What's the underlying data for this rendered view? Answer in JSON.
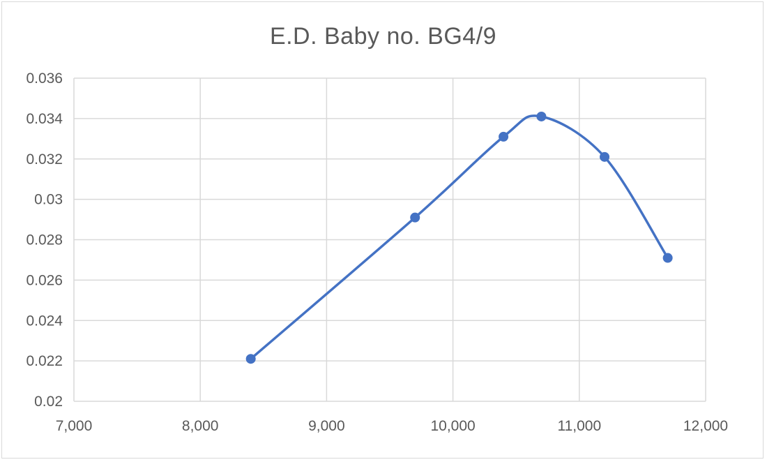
{
  "chart_data": {
    "type": "scatter",
    "title": "E.D. Baby no. BG4/9",
    "xlabel": "",
    "ylabel": "",
    "x_ticks": [
      "7,000",
      "8,000",
      "9,000",
      "10,000",
      "11,000",
      "12,000"
    ],
    "y_ticks": [
      "0.036",
      "0.034",
      "0.032",
      "0.03",
      "0.028",
      "0.026",
      "0.024",
      "0.022",
      "0.02"
    ],
    "xlim": [
      7000,
      12000
    ],
    "ylim": [
      0.02,
      0.036
    ],
    "grid": true,
    "line_style": "smoothed",
    "series": [
      {
        "x": [
          8400,
          9700,
          10400,
          10700,
          11200,
          11700
        ],
        "y": [
          0.0221,
          0.0291,
          0.0331,
          0.0341,
          0.0321,
          0.0271
        ]
      }
    ],
    "colors": {
      "series": "#4472C4",
      "grid": "#d9d9d9",
      "text": "#595959"
    }
  }
}
